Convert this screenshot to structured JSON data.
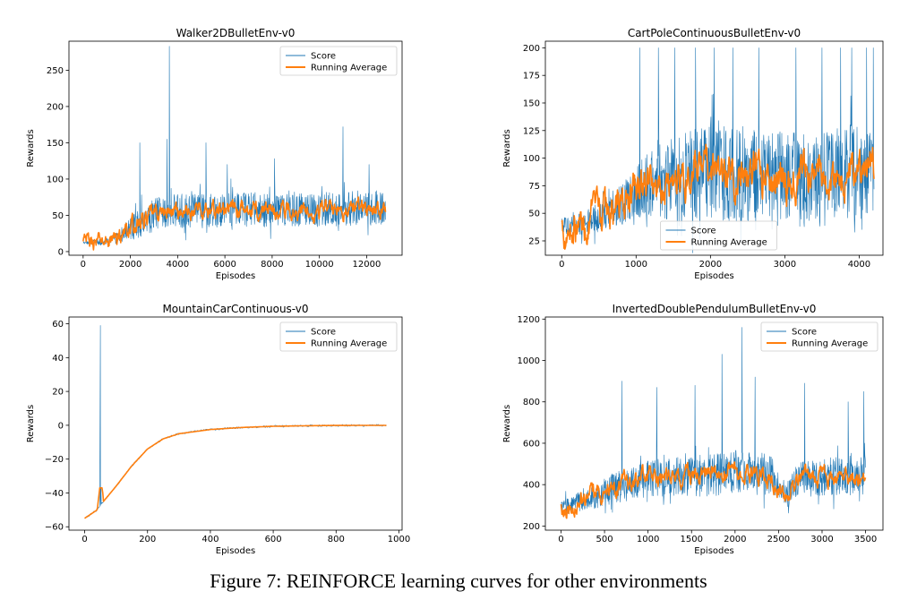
{
  "caption": "Figure 7: REINFORCE learning curves for other environments",
  "colors": {
    "score": "#1f77b4",
    "running_average": "#ff7f0e"
  },
  "chart_data": [
    {
      "type": "line",
      "title": "Walker2DBulletEnv-v0",
      "xlabel": "Episodes",
      "ylabel": "Rewards",
      "xlim": [
        -600,
        13500
      ],
      "ylim": [
        -5,
        290
      ],
      "xticks": [
        0,
        2000,
        4000,
        6000,
        8000,
        10000,
        12000
      ],
      "yticks": [
        0,
        50,
        100,
        150,
        200,
        250
      ],
      "legend": {
        "placement": "upper right",
        "entries": [
          "Score",
          "Running Average"
        ]
      },
      "series": [
        {
          "name": "Score",
          "style": "noisy",
          "x": [
            0,
            1000,
            1500,
            2000,
            2500,
            3000,
            3500,
            4000,
            5000,
            6000,
            7000,
            8000,
            9000,
            10000,
            11000,
            12000,
            12800
          ],
          "mean": [
            12,
            14,
            20,
            32,
            42,
            50,
            55,
            55,
            56,
            58,
            57,
            58,
            57,
            58,
            59,
            60,
            60
          ],
          "spread": [
            4,
            8,
            16,
            28,
            38,
            42,
            44,
            44,
            44,
            44,
            44,
            44,
            44,
            44,
            44,
            44,
            44
          ],
          "spikes": [
            [
              3650,
              283
            ],
            [
              3550,
              155
            ],
            [
              2400,
              150
            ],
            [
              5200,
              150
            ],
            [
              11000,
              172
            ],
            [
              6100,
              120
            ],
            [
              8100,
              128
            ],
            [
              12100,
              120
            ]
          ]
        },
        {
          "name": "Running Average",
          "style": "smooth",
          "x": [
            0,
            1000,
            1500,
            2000,
            2500,
            3000,
            3500,
            4000,
            5000,
            6000,
            7000,
            8000,
            9000,
            10000,
            11000,
            12000,
            12800
          ],
          "y": [
            12,
            14,
            20,
            32,
            42,
            50,
            55,
            55,
            56,
            58,
            57,
            58,
            57,
            58,
            59,
            60,
            60
          ],
          "noise": 8
        }
      ]
    },
    {
      "type": "line",
      "title": "CartPoleContinuousBulletEnv-v0",
      "xlabel": "Episodes",
      "ylabel": "Rewards",
      "xlim": [
        -220,
        4320
      ],
      "ylim": [
        12,
        206
      ],
      "xticks": [
        0,
        1000,
        2000,
        3000,
        4000
      ],
      "yticks": [
        25,
        50,
        75,
        100,
        125,
        150,
        175,
        200
      ],
      "legend": {
        "placement": "lower center",
        "entries": [
          "Score",
          "Running Average"
        ]
      },
      "series": [
        {
          "name": "Score",
          "style": "noisy",
          "x": [
            0,
            300,
            600,
            900,
            1100,
            1500,
            2000,
            2500,
            3000,
            3500,
            4000,
            4200
          ],
          "mean": [
            38,
            40,
            50,
            62,
            75,
            82,
            88,
            85,
            82,
            82,
            88,
            90
          ],
          "spread": [
            14,
            20,
            28,
            38,
            50,
            70,
            80,
            80,
            80,
            80,
            80,
            80
          ],
          "spikes": [
            [
              1050,
              200
            ],
            [
              1300,
              200
            ],
            [
              1520,
              200
            ],
            [
              1800,
              200
            ],
            [
              2050,
              200
            ],
            [
              2300,
              200
            ],
            [
              2650,
              200
            ],
            [
              3150,
              200
            ],
            [
              3500,
              200
            ],
            [
              3750,
              200
            ],
            [
              3900,
              200
            ],
            [
              4100,
              200
            ],
            [
              4190,
              200
            ]
          ]
        },
        {
          "name": "Running Average",
          "style": "smooth",
          "x": [
            0,
            300,
            600,
            900,
            1100,
            1500,
            2000,
            2500,
            3000,
            3500,
            4000,
            4200
          ],
          "y": [
            38,
            40,
            50,
            62,
            75,
            82,
            88,
            85,
            82,
            82,
            88,
            90
          ],
          "noise": 12
        }
      ]
    },
    {
      "type": "line",
      "title": "MountainCarContinuous-v0",
      "xlabel": "Episodes",
      "ylabel": "Rewards",
      "xlim": [
        -50,
        1010
      ],
      "ylim": [
        -62,
        64
      ],
      "xticks": [
        0,
        200,
        400,
        600,
        800,
        1000
      ],
      "yticks": [
        -60,
        -40,
        -20,
        0,
        20,
        40,
        60
      ],
      "legend": {
        "placement": "upper right",
        "entries": [
          "Score",
          "Running Average"
        ]
      },
      "series": [
        {
          "name": "Score",
          "style": "curve",
          "x": [
            0,
            40,
            60,
            100,
            150,
            200,
            250,
            300,
            400,
            500,
            600,
            700,
            800,
            960
          ],
          "y": [
            -55,
            -50,
            -45,
            -36,
            -24,
            -14,
            -8,
            -5,
            -2.5,
            -1.3,
            -0.6,
            -0.3,
            -0.1,
            -0.05
          ],
          "spikes": [
            [
              50,
              59
            ],
            [
              52,
              -37
            ]
          ]
        },
        {
          "name": "Running Average",
          "style": "curve",
          "x": [
            0,
            40,
            48,
            52,
            56,
            60,
            100,
            150,
            200,
            250,
            300,
            400,
            500,
            600,
            700,
            800,
            960
          ],
          "y": [
            -55,
            -50,
            -37,
            -37,
            -37,
            -45,
            -36,
            -24,
            -14,
            -8,
            -5,
            -2.5,
            -1.3,
            -0.6,
            -0.3,
            -0.1,
            -0.05
          ]
        }
      ]
    },
    {
      "type": "line",
      "title": "InvertedDoublePendulumBulletEnv-v0",
      "xlabel": "Episodes",
      "ylabel": "Rewards",
      "xlim": [
        -180,
        3700
      ],
      "ylim": [
        180,
        1210
      ],
      "xticks": [
        0,
        500,
        1000,
        1500,
        2000,
        2500,
        3000,
        3500
      ],
      "yticks": [
        200,
        400,
        600,
        800,
        1000,
        1200
      ],
      "legend": {
        "placement": "upper right",
        "entries": [
          "Score",
          "Running Average"
        ]
      },
      "series": [
        {
          "name": "Score",
          "style": "noisy",
          "x": [
            0,
            300,
            600,
            1000,
            1500,
            2000,
            2400,
            2600,
            2700,
            3000,
            3500
          ],
          "mean": [
            290,
            330,
            380,
            430,
            440,
            460,
            450,
            340,
            420,
            440,
            440
          ],
          "spread": [
            70,
            90,
            140,
            160,
            180,
            200,
            180,
            90,
            150,
            170,
            170
          ],
          "spikes": [
            [
              2080,
              1160
            ],
            [
              1850,
              1030
            ],
            [
              700,
              900
            ],
            [
              1540,
              880
            ],
            [
              2230,
              920
            ],
            [
              2800,
              890
            ],
            [
              1100,
              870
            ],
            [
              3300,
              800
            ],
            [
              3480,
              850
            ]
          ]
        },
        {
          "name": "Running Average",
          "style": "smooth",
          "x": [
            0,
            300,
            600,
            1000,
            1500,
            2000,
            2400,
            2600,
            2700,
            3000,
            3500
          ],
          "y": [
            290,
            330,
            380,
            430,
            440,
            460,
            450,
            340,
            420,
            440,
            440
          ],
          "noise": 30
        }
      ]
    }
  ]
}
